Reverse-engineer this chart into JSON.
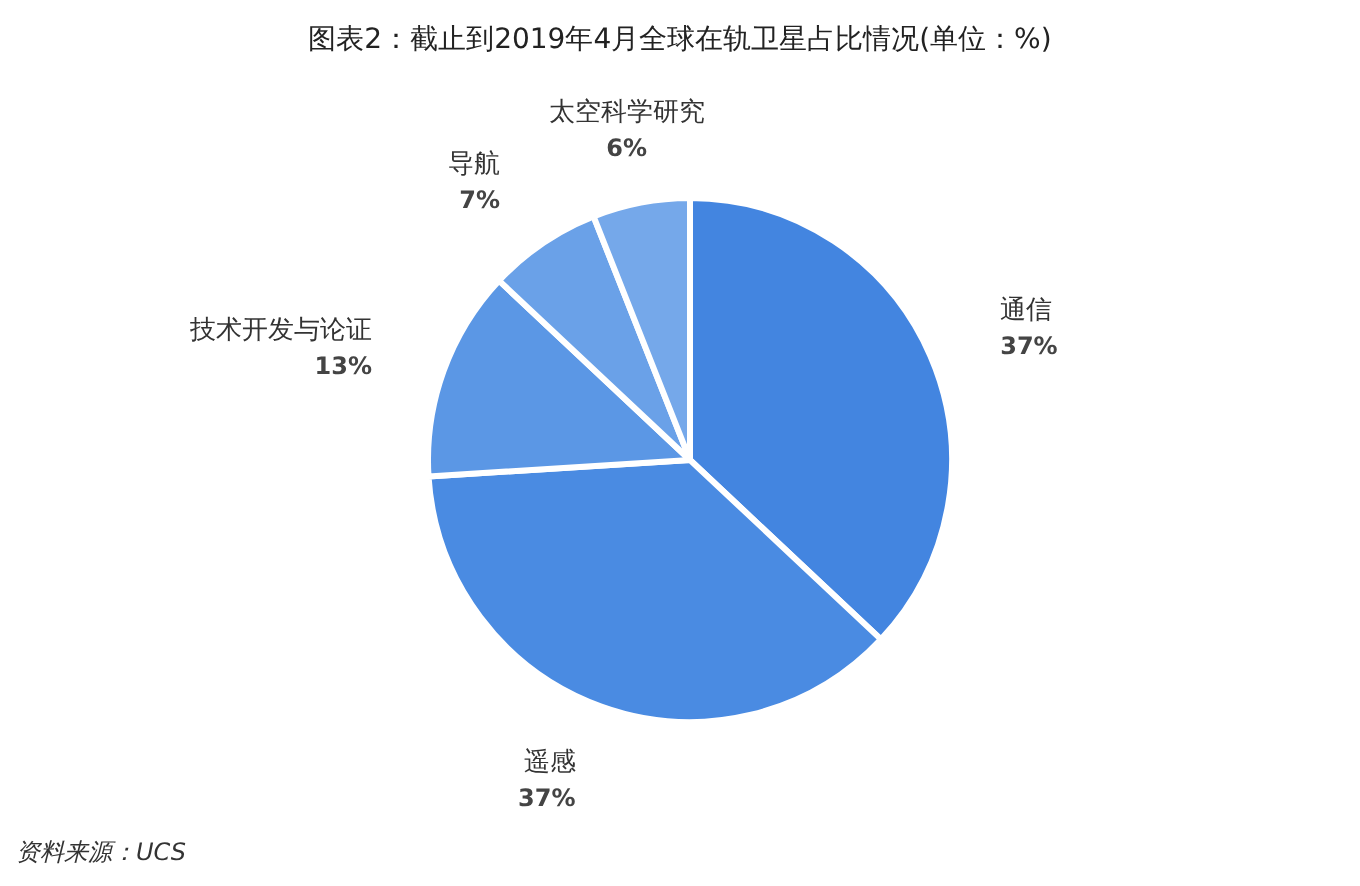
{
  "chart_data": {
    "type": "pie",
    "title": "图表2：截止到2019年4月全球在轨卫星占比情况(单位：%)",
    "categories": [
      "通信",
      "遥感",
      "技术开发与论证",
      "导航",
      "太空科学研究"
    ],
    "values": [
      37,
      37,
      13,
      7,
      6
    ],
    "colors": [
      "#4385e0",
      "#4a8be2",
      "#5b97e5",
      "#6aa1e8",
      "#75a8ea"
    ],
    "value_labels": [
      "37%",
      "37%",
      "13%",
      "7%",
      "6%"
    ],
    "annotations": [
      "资料来源：UCS"
    ]
  }
}
